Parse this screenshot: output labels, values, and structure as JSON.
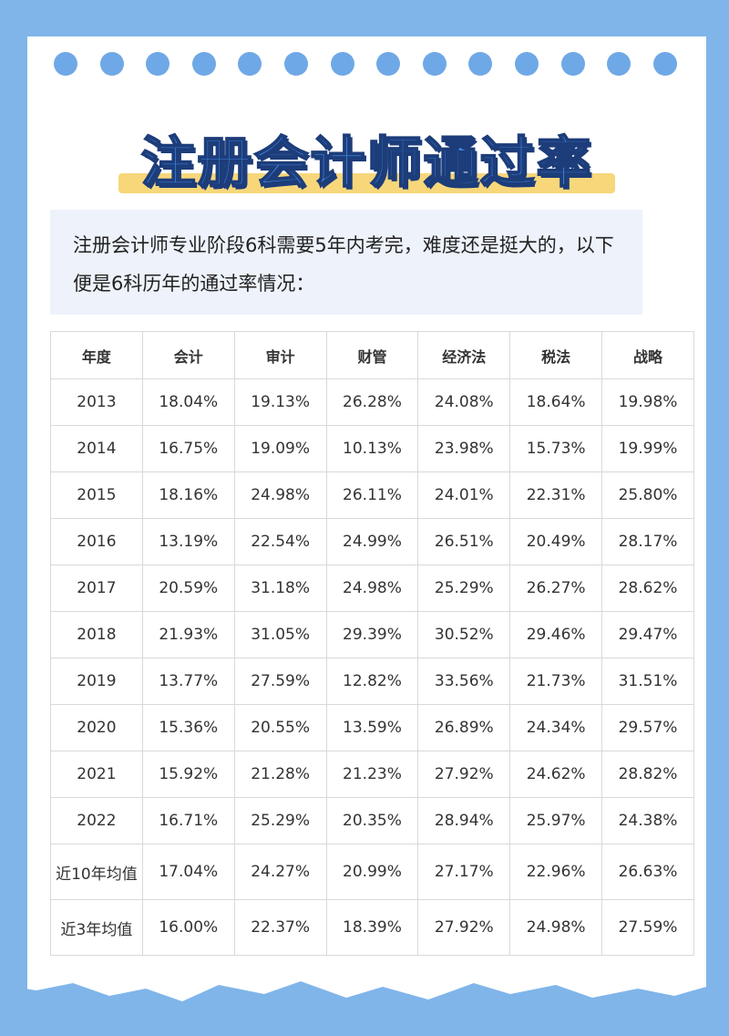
{
  "title": "注册会计师通过率",
  "intro": "注册会计师专业阶段6科需要5年内考完，难度还是挺大的，以下便是6科历年的通过率情况：",
  "table": {
    "header": [
      "年度",
      "会计",
      "审计",
      "财管",
      "经济法",
      "税法",
      "战略"
    ],
    "rows": [
      [
        "2013",
        "18.04%",
        "19.13%",
        "26.28%",
        "24.08%",
        "18.64%",
        "19.98%"
      ],
      [
        "2014",
        "16.75%",
        "19.09%",
        "10.13%",
        "23.98%",
        "15.73%",
        "19.99%"
      ],
      [
        "2015",
        "18.16%",
        "24.98%",
        "26.11%",
        "24.01%",
        "22.31%",
        "25.80%"
      ],
      [
        "2016",
        "13.19%",
        "22.54%",
        "24.99%",
        "26.51%",
        "20.49%",
        "28.17%"
      ],
      [
        "2017",
        "20.59%",
        "31.18%",
        "24.98%",
        "25.29%",
        "26.27%",
        "28.62%"
      ],
      [
        "2018",
        "21.93%",
        "31.05%",
        "29.39%",
        "30.52%",
        "29.46%",
        "29.47%"
      ],
      [
        "2019",
        "13.77%",
        "27.59%",
        "12.82%",
        "33.56%",
        "21.73%",
        "31.51%"
      ],
      [
        "2020",
        "15.36%",
        "20.55%",
        "13.59%",
        "26.89%",
        "24.34%",
        "29.57%"
      ],
      [
        "2021",
        "15.92%",
        "21.28%",
        "21.23%",
        "27.92%",
        "24.62%",
        "28.82%"
      ],
      [
        "2022",
        "16.71%",
        "25.29%",
        "20.35%",
        "28.94%",
        "25.97%",
        "24.38%"
      ],
      [
        "近10年均值",
        "17.04%",
        "24.27%",
        "20.99%",
        "27.17%",
        "22.96%",
        "26.63%"
      ],
      [
        "近3年均值",
        "16.00%",
        "22.37%",
        "18.39%",
        "27.92%",
        "24.98%",
        "27.59%"
      ]
    ]
  }
}
